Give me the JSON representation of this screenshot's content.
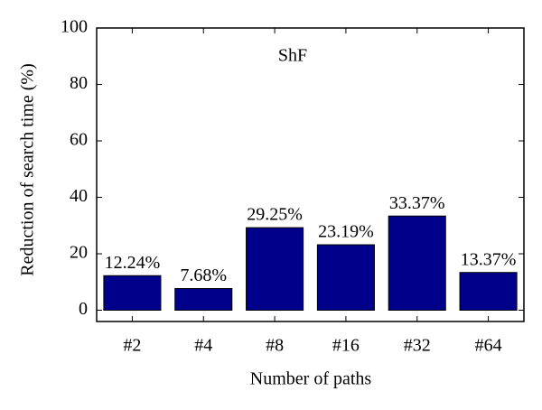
{
  "chart_data": {
    "type": "bar",
    "annotation": "ShF",
    "xlabel": "Number of paths",
    "ylabel": "Reduction of search time (%)",
    "categories": [
      "#2",
      "#4",
      "#8",
      "#16",
      "#32",
      "#64"
    ],
    "values": [
      12.24,
      7.68,
      29.25,
      23.19,
      33.37,
      13.37
    ],
    "value_labels": [
      "12.24%",
      "7.68%",
      "29.25%",
      "23.19%",
      "33.37%",
      "13.37%"
    ],
    "color": "#00008b",
    "ylim": [
      -4,
      100
    ],
    "yticks": [
      0,
      20,
      40,
      60,
      80,
      100
    ]
  }
}
